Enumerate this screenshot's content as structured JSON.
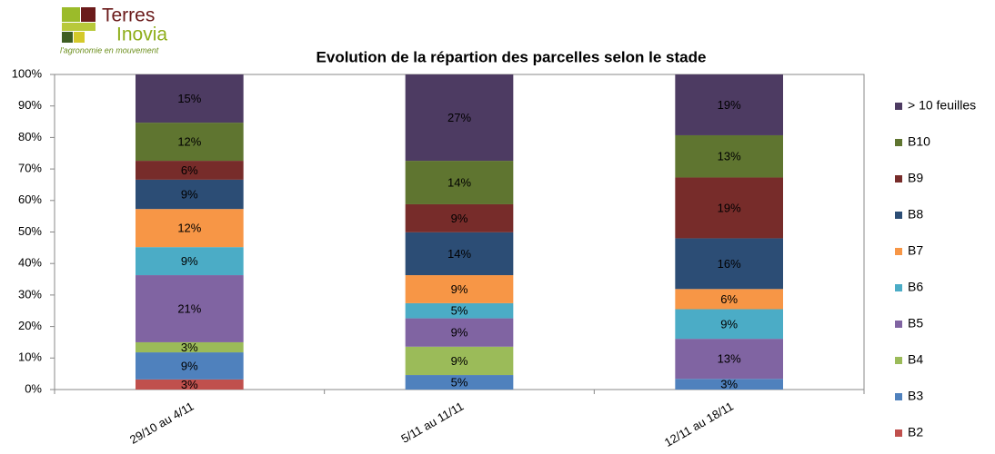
{
  "logo": {
    "name_line1": "Terres",
    "name_line2": "Inovia",
    "tagline": "l'agronomie en mouvement"
  },
  "chart_data": {
    "type": "stacked_bar",
    "title": "Evolution de la répartion des parcelles selon le stade",
    "categories": [
      "29/10 au 4/11",
      "5/11 au 11/11",
      "12/11 au 18/11"
    ],
    "ylim": [
      0,
      100
    ],
    "yticks": [
      {
        "value": 0,
        "label": "0%"
      },
      {
        "value": 10,
        "label": "10%"
      },
      {
        "value": 20,
        "label": "20%"
      },
      {
        "value": 30,
        "label": "30%"
      },
      {
        "value": 40,
        "label": "40%"
      },
      {
        "value": 50,
        "label": "50%"
      },
      {
        "value": 60,
        "label": "60%"
      },
      {
        "value": 70,
        "label": "70%"
      },
      {
        "value": 80,
        "label": "80%"
      },
      {
        "value": 90,
        "label": "90%"
      },
      {
        "value": 100,
        "label": "100%"
      }
    ],
    "grid": false,
    "legend": "right",
    "series": [
      {
        "name": "B2",
        "color": "#c0504d",
        "values": [
          3.2,
          0,
          0
        ],
        "value_labels": [
          "3%",
          null,
          null
        ]
      },
      {
        "name": "B3",
        "color": "#4f81bd",
        "values": [
          8.6,
          4.6,
          3.4
        ],
        "value_labels": [
          "9%",
          "5%",
          "3%"
        ]
      },
      {
        "name": "B4",
        "color": "#9bbb59",
        "values": [
          3.2,
          9.0,
          0
        ],
        "value_labels": [
          "3%",
          "9%",
          null
        ]
      },
      {
        "name": "B5",
        "color": "#8064a2",
        "values": [
          21.3,
          9.0,
          12.7
        ],
        "value_labels": [
          "21%",
          "9%",
          "13%"
        ]
      },
      {
        "name": "B6",
        "color": "#4bacc6",
        "values": [
          8.9,
          4.8,
          9.4
        ],
        "value_labels": [
          "9%",
          "5%",
          "9%"
        ]
      },
      {
        "name": "B7",
        "color": "#f79646",
        "values": [
          12.1,
          8.9,
          6.4
        ],
        "value_labels": [
          "12%",
          "9%",
          "6%"
        ]
      },
      {
        "name": "B8",
        "color": "#2c4d75",
        "values": [
          9.3,
          13.6,
          16.1
        ],
        "value_labels": [
          "9%",
          "14%",
          "16%"
        ]
      },
      {
        "name": "B9",
        "color": "#772c2a",
        "values": [
          6.0,
          8.9,
          19.3
        ],
        "value_labels": [
          "6%",
          "9%",
          "19%"
        ]
      },
      {
        "name": "B10",
        "color": "#5f7530",
        "values": [
          12.1,
          13.8,
          13.4
        ],
        "value_labels": [
          "12%",
          "14%",
          "13%"
        ]
      },
      {
        "name": "> 10 feuilles",
        "color": "#4d3b62",
        "values": [
          15.3,
          27.4,
          19.3
        ],
        "value_labels": [
          "15%",
          "27%",
          "19%"
        ]
      }
    ]
  }
}
